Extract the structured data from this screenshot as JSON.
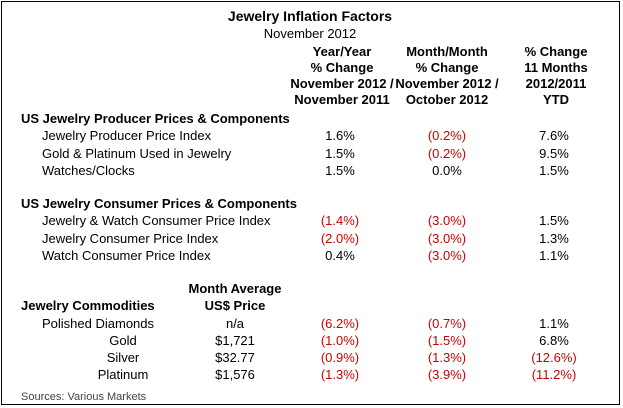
{
  "title": "Jewelry Inflation Factors",
  "subtitle": "November 2012",
  "columns": [
    [
      "Year/Year",
      "% Change",
      "November 2012 /",
      "November 2011"
    ],
    [
      "Month/Month",
      "% Change",
      "November 2012 /",
      "October 2012"
    ],
    [
      "% Change",
      "11 Months",
      "2012/2011",
      "YTD"
    ]
  ],
  "sections": [
    {
      "heading": "US Jewelry Producer Prices & Components",
      "rows": [
        {
          "label": "Jewelry Producer Price Index",
          "values": [
            "1.6%",
            "(0.2%)",
            "7.6%"
          ]
        },
        {
          "label": "Gold & Platinum Used in Jewelry",
          "values": [
            "1.5%",
            "(0.2%)",
            "9.5%"
          ]
        },
        {
          "label": "Watches/Clocks",
          "values": [
            "1.5%",
            "0.0%",
            "1.5%"
          ]
        }
      ]
    },
    {
      "heading": "US Jewelry Consumer Prices & Components",
      "rows": [
        {
          "label": "Jewelry & Watch Consumer Price Index",
          "values": [
            "(1.4%)",
            "(3.0%)",
            "1.5%"
          ]
        },
        {
          "label": "Jewelry Consumer Price Index",
          "values": [
            "(2.0%)",
            "(3.0%)",
            "1.3%"
          ]
        },
        {
          "label": "Watch Consumer Price Index",
          "values": [
            "0.4%",
            "(3.0%)",
            "1.1%"
          ]
        }
      ]
    }
  ],
  "commodities": {
    "heading": "Jewelry Commodities",
    "price_header": [
      "Month Average",
      "US$ Price"
    ],
    "rows": [
      {
        "label": "Polished Diamonds",
        "price": "n/a",
        "values": [
          "(6.2%)",
          "(0.7%)",
          "1.1%"
        ]
      },
      {
        "label": "Gold",
        "price": "$1,721",
        "values": [
          "(1.0%)",
          "(1.5%)",
          "6.8%"
        ]
      },
      {
        "label": "Silver",
        "price": "$32.77",
        "values": [
          "(0.9%)",
          "(1.3%)",
          "(12.6%)"
        ]
      },
      {
        "label": "Platinum",
        "price": "$1,576",
        "values": [
          "(1.3%)",
          "(3.9%)",
          "(11.2%)"
        ]
      }
    ]
  },
  "source": "Sources: Various Markets",
  "colors": {
    "negative": "#cc0000",
    "positive": "#000000",
    "border": "#000000"
  }
}
